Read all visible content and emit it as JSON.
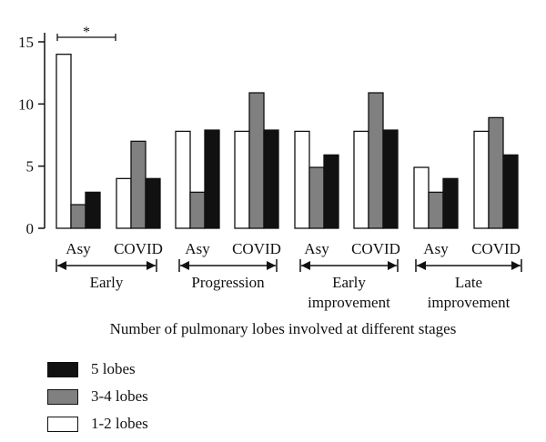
{
  "chart_data": {
    "type": "bar",
    "xlabel": "Number of pulmonary lobes involved at different stages",
    "ylim": [
      0,
      15
    ],
    "yticks": [
      0,
      5,
      10,
      15
    ],
    "categories": [
      "Asy",
      "COVID",
      "Asy",
      "COVID",
      "Asy",
      "COVID",
      "Asy",
      "COVID"
    ],
    "stages": [
      {
        "label": "Early",
        "label_lines": [
          "Early"
        ]
      },
      {
        "label": "Progression",
        "label_lines": [
          "Progression"
        ]
      },
      {
        "label": "Early improvement",
        "label_lines": [
          "Early",
          "improvement"
        ]
      },
      {
        "label": "Late improvement",
        "label_lines": [
          "Late",
          "improvement"
        ]
      }
    ],
    "series": [
      {
        "name": "1-2 lobes",
        "color": "#ffffff",
        "values": [
          14,
          4,
          7.8,
          7.8,
          7.8,
          7.8,
          4.9,
          7.8
        ]
      },
      {
        "name": "3-4 lobes",
        "color": "#808080",
        "values": [
          1.9,
          7,
          2.9,
          10.9,
          4.9,
          10.9,
          2.9,
          8.9
        ]
      },
      {
        "name": "5 lobes",
        "color": "#111111",
        "values": [
          2.9,
          4,
          7.9,
          7.9,
          5.9,
          7.9,
          4,
          5.9
        ]
      }
    ],
    "significance": {
      "label": "*"
    },
    "legend_position": "bottom-left",
    "grid": false
  }
}
